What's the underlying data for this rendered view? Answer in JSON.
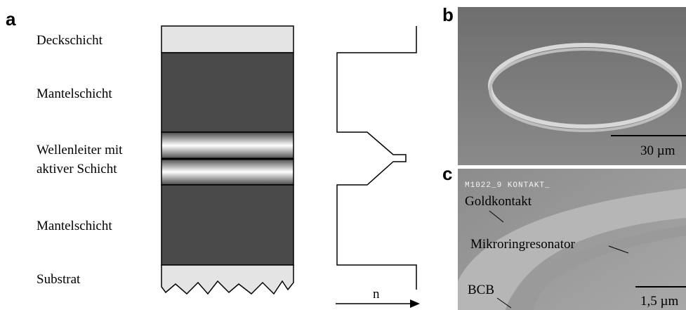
{
  "panel_a": {
    "label": "a",
    "layers": [
      "Deckschicht",
      "Mantelschicht",
      "Wellenleiter mit",
      "aktiver Schicht",
      "Mantelschicht",
      "Substrat"
    ],
    "axis_label": "n"
  },
  "panel_b": {
    "label": "b",
    "scale_bar": "30 µm"
  },
  "panel_c": {
    "label": "c",
    "header": "M1022_9 KONTAKT_",
    "annotations": [
      "Goldkontakt",
      "Mikroringresonator",
      "BCB"
    ],
    "scale_bar": "1,5 µm"
  }
}
